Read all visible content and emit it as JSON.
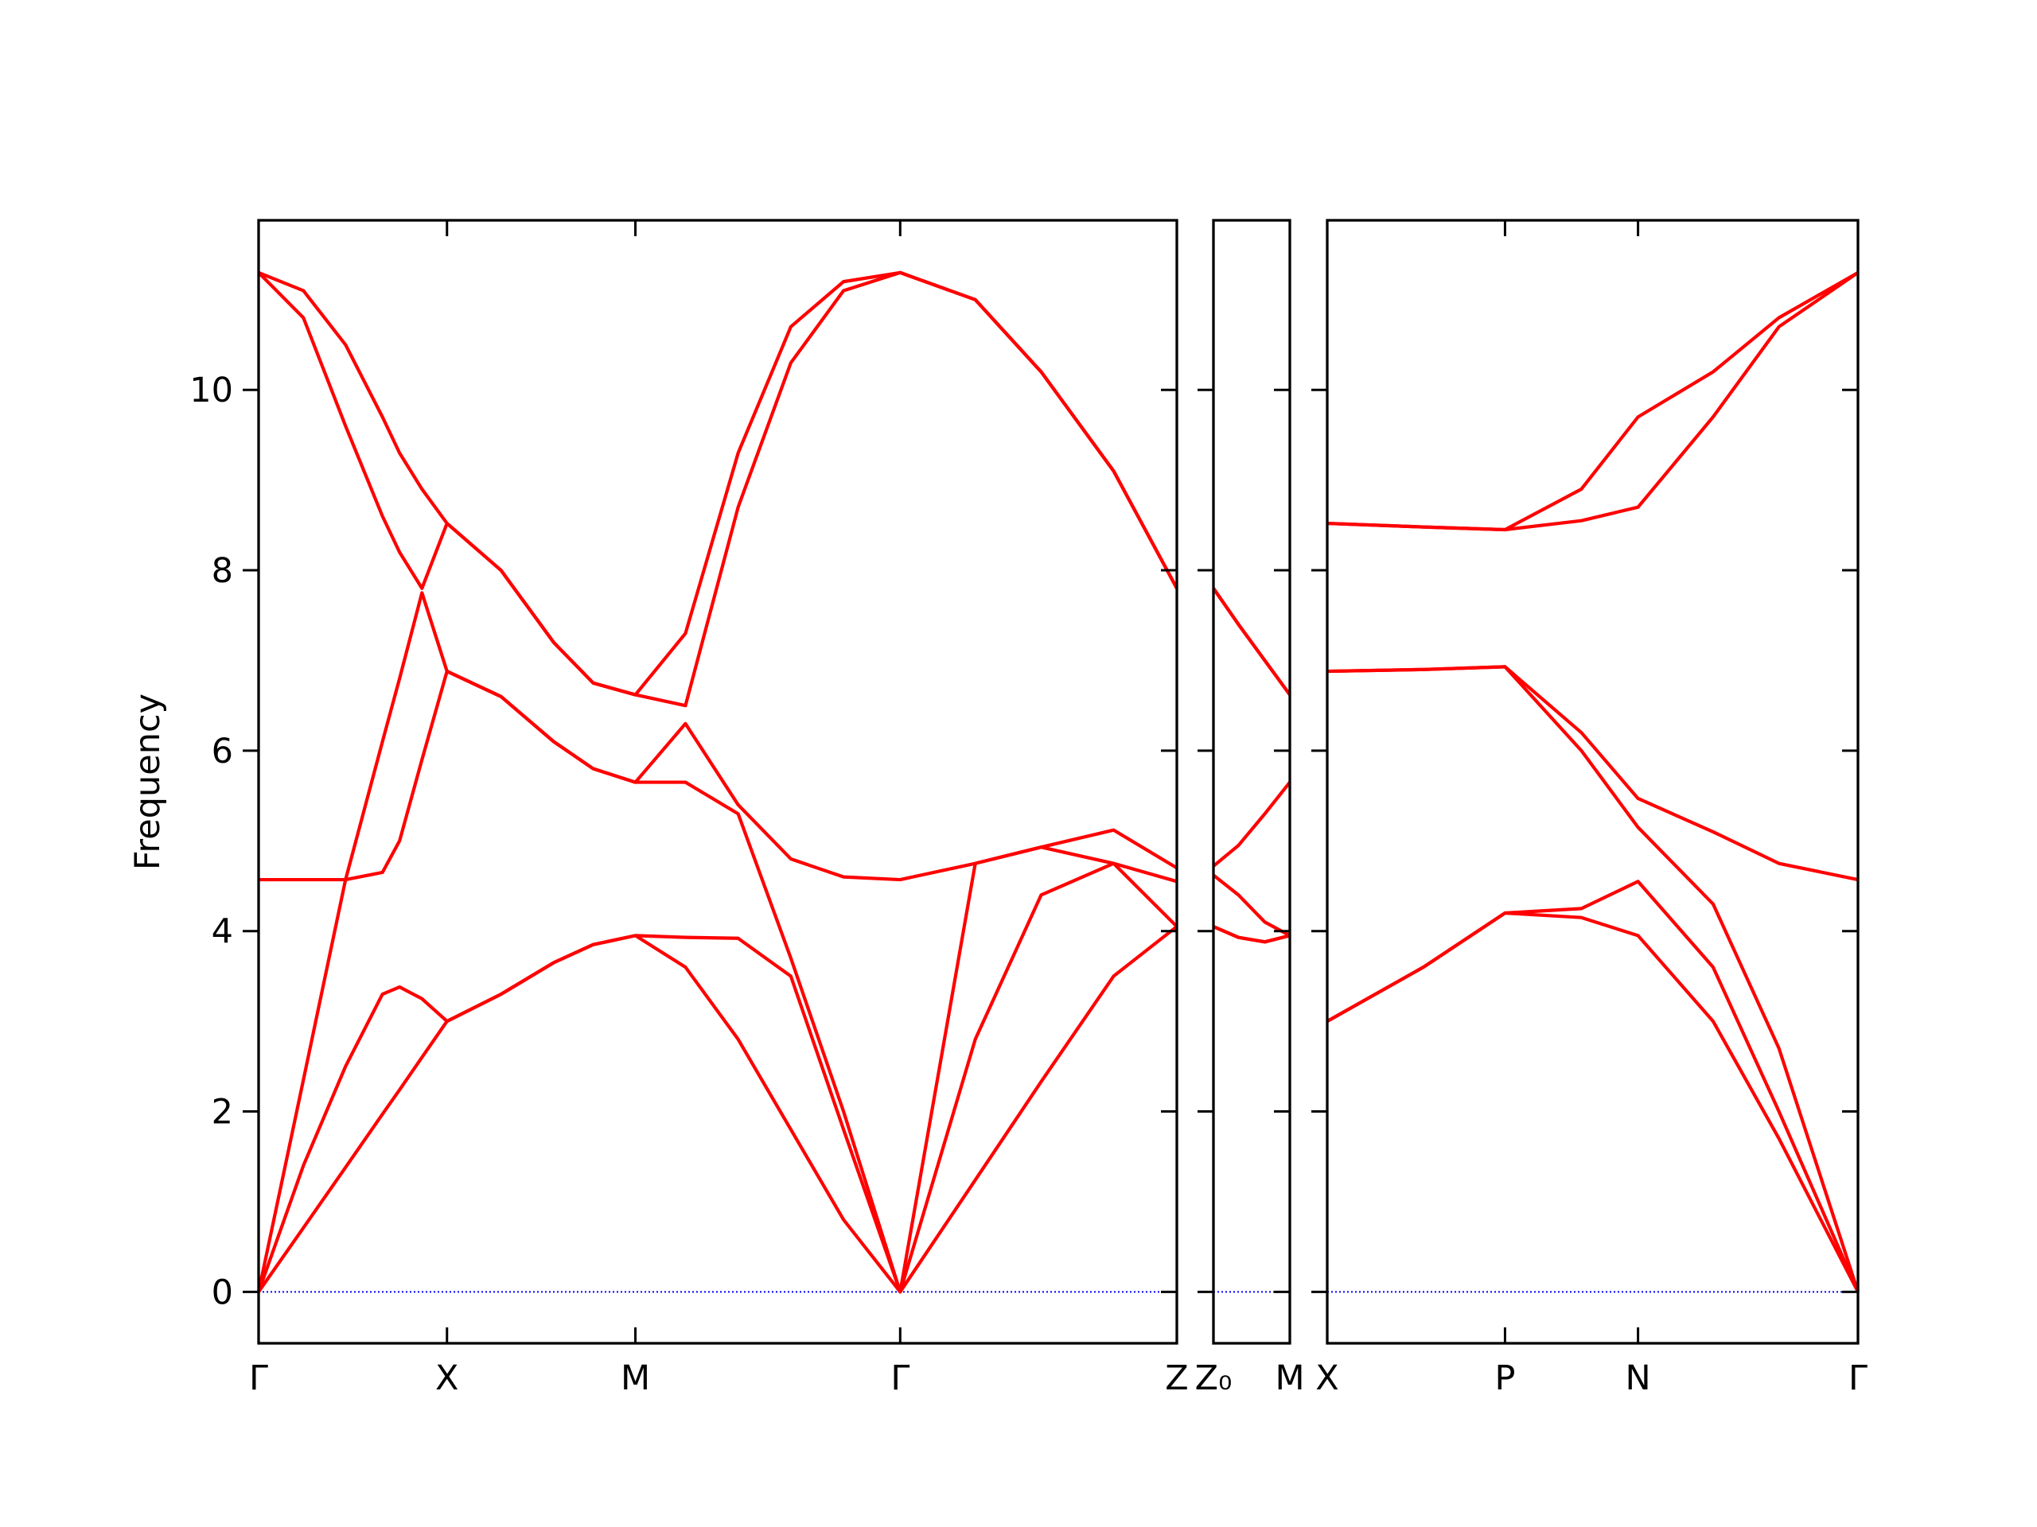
{
  "chart_data": [
    {
      "type": "line",
      "ylabel": "Frequency",
      "show_ytick_labels": true,
      "ylim": [
        -0.57,
        11.88
      ],
      "yticks": [
        0,
        2,
        4,
        6,
        8,
        10
      ],
      "xlim": [
        0,
        6.97
      ],
      "xticks": [
        {
          "value": 0,
          "label": "Γ"
        },
        {
          "value": 1.43,
          "label": "X"
        },
        {
          "value": 2.86,
          "label": "M"
        },
        {
          "value": 4.87,
          "label": "Γ"
        },
        {
          "value": 6.97,
          "label": "Z"
        }
      ],
      "zero_line_color": "#0000ff",
      "x": [
        0,
        0.34,
        0.66,
        0.94,
        1.07,
        1.24,
        1.43,
        1.84,
        2.24,
        2.54,
        2.86,
        3.24,
        3.64,
        4.04,
        4.44,
        4.87,
        5.44,
        5.94,
        6.49,
        6.97
      ],
      "series": [
        {
          "color": "#ff0000",
          "values": [
            0,
            0.71,
            1.38,
            1.97,
            2.24,
            2.6,
            3.0,
            3.3,
            3.65,
            3.85,
            3.95,
            3.6,
            2.8,
            1.8,
            0.8,
            0,
            1.24,
            2.33,
            3.5,
            4.05
          ]
        },
        {
          "color": "#ff0000",
          "values": [
            0,
            1.4,
            2.5,
            3.3,
            3.38,
            3.25,
            3.0,
            3.3,
            3.65,
            3.85,
            3.95,
            3.93,
            3.92,
            3.5,
            1.8,
            0,
            2.8,
            4.4,
            4.75,
            4.05
          ]
        },
        {
          "color": "#ff0000",
          "values": [
            0,
            2.35,
            4.57,
            4.65,
            5.0,
            5.9,
            6.88,
            6.6,
            6.1,
            5.8,
            5.65,
            5.65,
            5.3,
            3.7,
            2.0,
            0,
            4.75,
            4.93,
            4.75,
            4.55
          ]
        },
        {
          "color": "#ff0000",
          "values": [
            4.57,
            4.57,
            4.57,
            6.1,
            6.8,
            7.75,
            6.88,
            6.6,
            6.1,
            5.8,
            5.65,
            6.3,
            5.4,
            4.8,
            4.6,
            4.57,
            4.75,
            4.93,
            5.12,
            4.7
          ]
        },
        {
          "color": "#ff0000",
          "values": [
            11.3,
            10.8,
            9.6,
            8.6,
            8.2,
            7.8,
            8.52,
            8.0,
            7.2,
            6.75,
            6.62,
            6.5,
            8.7,
            10.3,
            11.1,
            11.3,
            11.0,
            10.2,
            9.1,
            7.8
          ]
        },
        {
          "color": "#ff0000",
          "values": [
            11.3,
            11.1,
            10.5,
            9.7,
            9.3,
            8.9,
            8.52,
            8.0,
            7.2,
            6.75,
            6.62,
            7.3,
            9.3,
            10.7,
            11.2,
            11.3,
            11.0,
            10.2,
            9.1,
            7.8
          ]
        }
      ]
    },
    {
      "type": "line",
      "show_ytick_labels": false,
      "ylim": [
        -0.57,
        11.88
      ],
      "yticks": [
        0,
        2,
        4,
        6,
        8,
        10
      ],
      "xlim": [
        0,
        0.58
      ],
      "xticks": [
        {
          "value": 0,
          "label": "Z₀"
        },
        {
          "value": 0.58,
          "label": "M"
        }
      ],
      "zero_line_color": "#0000ff",
      "x": [
        0,
        0.19,
        0.39,
        0.58
      ],
      "series": [
        {
          "color": "#ff0000",
          "values": [
            4.05,
            3.93,
            3.88,
            3.95
          ]
        },
        {
          "color": "#ff0000",
          "values": [
            4.05,
            3.93,
            3.88,
            3.95
          ]
        },
        {
          "color": "#ff0000",
          "values": [
            4.62,
            4.4,
            4.1,
            3.95
          ]
        },
        {
          "color": "#ff0000",
          "values": [
            4.72,
            4.95,
            5.3,
            5.65
          ]
        },
        {
          "color": "#ff0000",
          "values": [
            7.8,
            7.4,
            7.0,
            6.62
          ]
        },
        {
          "color": "#ff0000",
          "values": [
            7.8,
            7.4,
            7.0,
            6.62
          ]
        }
      ]
    },
    {
      "type": "line",
      "show_ytick_labels": false,
      "ylim": [
        -0.57,
        11.88
      ],
      "yticks": [
        0,
        2,
        4,
        6,
        8,
        10
      ],
      "xlim": [
        0,
        4.03
      ],
      "xticks": [
        {
          "value": 0,
          "label": "X"
        },
        {
          "value": 1.35,
          "label": "P"
        },
        {
          "value": 2.36,
          "label": "N"
        },
        {
          "value": 4.03,
          "label": "Γ"
        }
      ],
      "zero_line_color": "#0000ff",
      "x": [
        0,
        0.73,
        1.35,
        1.93,
        2.36,
        2.93,
        3.43,
        4.03
      ],
      "series": [
        {
          "color": "#ff0000",
          "values": [
            3.0,
            3.6,
            4.2,
            4.15,
            3.95,
            3.0,
            1.7,
            0
          ]
        },
        {
          "color": "#ff0000",
          "values": [
            3.0,
            3.6,
            4.2,
            4.25,
            4.55,
            3.6,
            2.0,
            0
          ]
        },
        {
          "color": "#ff0000",
          "values": [
            6.88,
            6.9,
            6.93,
            6.0,
            5.15,
            4.3,
            2.7,
            0
          ]
        },
        {
          "color": "#ff0000",
          "values": [
            6.88,
            6.9,
            6.93,
            6.2,
            5.47,
            5.1,
            4.75,
            4.57
          ]
        },
        {
          "color": "#ff0000",
          "values": [
            8.52,
            8.48,
            8.45,
            8.55,
            8.7,
            9.7,
            10.7,
            11.3
          ]
        },
        {
          "color": "#ff0000",
          "values": [
            8.52,
            8.48,
            8.45,
            8.9,
            9.7,
            10.2,
            10.8,
            11.3
          ]
        }
      ]
    }
  ]
}
